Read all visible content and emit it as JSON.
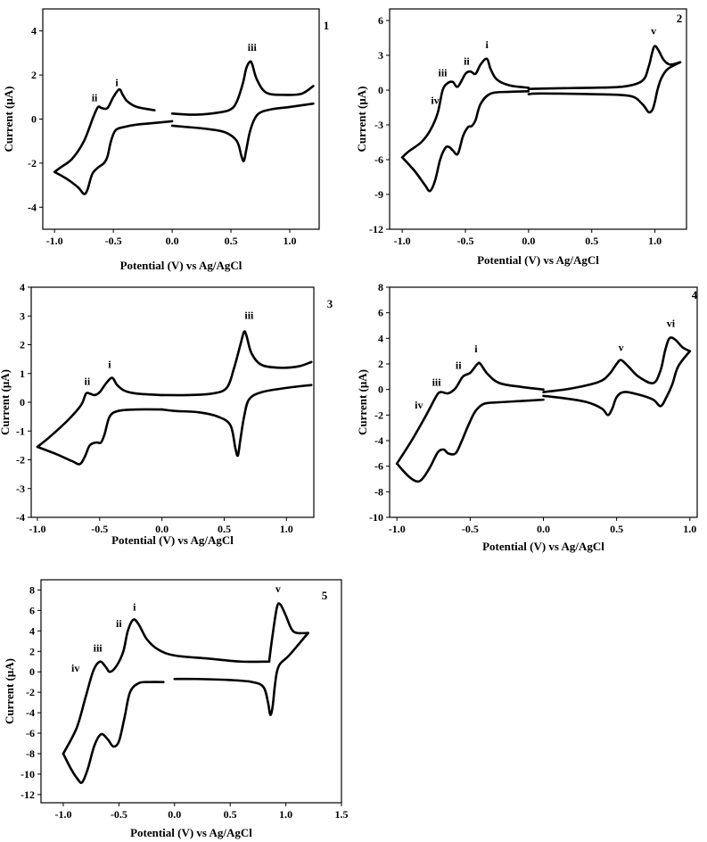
{
  "chart_data": [
    {
      "type": "line",
      "panel_label": "1",
      "xlabel": "Potential (V) vs Ag/AgCl",
      "ylabel": "Current (μA)",
      "xlim": [
        -1.1,
        1.25
      ],
      "ylim": [
        -5,
        5
      ],
      "xticks": [
        -1.0,
        -0.5,
        0.0,
        0.5,
        1.0
      ],
      "xtick_labels": [
        "-1.0",
        "-0.5",
        "0.0",
        "0.5",
        "1.0"
      ],
      "yticks": [
        -4,
        -2,
        0,
        2,
        4
      ],
      "ytick_labels": [
        "-4",
        "-2",
        "0",
        "2",
        "4"
      ],
      "grid": false,
      "series": [
        {
          "x": [
            -0.15,
            -0.3,
            -0.38,
            -0.42,
            -0.45,
            -0.5,
            -0.55,
            -0.6,
            -0.63,
            -0.67,
            -0.75,
            -0.85,
            -0.95,
            -1.0
          ],
          "y": [
            0.4,
            0.55,
            0.8,
            1.1,
            1.35,
            1.0,
            0.5,
            0.5,
            0.55,
            0.1,
            -1.0,
            -1.8,
            -2.2,
            -2.4
          ]
        },
        {
          "x": [
            -1.0,
            -0.9,
            -0.8,
            -0.75,
            -0.72,
            -0.68,
            -0.63,
            -0.58,
            -0.55,
            -0.52,
            -0.48,
            -0.4,
            -0.3,
            -0.2,
            0.0
          ],
          "y": [
            -2.4,
            -2.7,
            -3.1,
            -3.4,
            -3.2,
            -2.5,
            -2.2,
            -2.0,
            -1.7,
            -1.0,
            -0.5,
            -0.35,
            -0.25,
            -0.2,
            -0.1
          ]
        },
        {
          "x": [
            0.0,
            0.2,
            0.4,
            0.5,
            0.55,
            0.6,
            0.63,
            0.66,
            0.68,
            0.72,
            0.8,
            0.95,
            1.1,
            1.2
          ],
          "y": [
            0.25,
            0.2,
            0.3,
            0.45,
            0.8,
            1.6,
            2.3,
            2.6,
            2.5,
            1.8,
            1.2,
            1.1,
            1.15,
            1.5
          ]
        },
        {
          "x": [
            1.2,
            1.0,
            0.85,
            0.75,
            0.7,
            0.66,
            0.63,
            0.61,
            0.59,
            0.55,
            0.45,
            0.3,
            0.1,
            0.0
          ],
          "y": [
            0.7,
            0.55,
            0.45,
            0.3,
            0.0,
            -0.6,
            -1.4,
            -1.9,
            -1.7,
            -1.0,
            -0.6,
            -0.45,
            -0.35,
            -0.3
          ]
        }
      ],
      "annotations": [
        {
          "text": "i",
          "x": -0.47,
          "y": 1.5
        },
        {
          "text": "ii",
          "x": -0.66,
          "y": 0.8
        },
        {
          "text": "iii",
          "x": 0.68,
          "y": 3.1
        }
      ]
    },
    {
      "type": "line",
      "panel_label": "2",
      "xlabel": "Potential (V) vs Ag/AgCl",
      "ylabel": "Current (μA)",
      "xlim": [
        -1.1,
        1.25
      ],
      "ylim": [
        -12,
        7
      ],
      "xticks": [
        -1.0,
        -0.5,
        0.0,
        0.5,
        1.0
      ],
      "xtick_labels": [
        "-1.0",
        "-0.5",
        "0.0",
        "0.5",
        "1.0"
      ],
      "yticks": [
        -12,
        -9,
        -6,
        -3,
        0,
        3,
        6
      ],
      "ytick_labels": [
        "-12",
        "-9",
        "-6",
        "-3",
        "0",
        "3",
        "6"
      ],
      "grid": false,
      "series": [
        {
          "x": [
            0.0,
            -0.15,
            -0.25,
            -0.3,
            -0.33,
            -0.38,
            -0.42,
            -0.46,
            -0.5,
            -0.56,
            -0.6,
            -0.64,
            -0.68,
            -0.72,
            -0.78,
            -0.85,
            -0.95,
            -1.0
          ],
          "y": [
            0.2,
            0.4,
            0.9,
            1.8,
            2.7,
            2.2,
            1.4,
            1.6,
            1.4,
            0.3,
            0.7,
            0.6,
            0.0,
            -2.0,
            -3.5,
            -4.5,
            -5.3,
            -5.8
          ]
        },
        {
          "x": [
            -1.0,
            -0.9,
            -0.82,
            -0.78,
            -0.74,
            -0.7,
            -0.66,
            -0.63,
            -0.6,
            -0.56,
            -0.52,
            -0.48,
            -0.45,
            -0.42,
            -0.38,
            -0.3,
            -0.15,
            0.0
          ],
          "y": [
            -5.8,
            -7.0,
            -8.2,
            -8.7,
            -7.8,
            -6.0,
            -5.0,
            -4.9,
            -5.2,
            -5.5,
            -4.0,
            -3.2,
            -3.1,
            -2.6,
            -1.2,
            -0.3,
            -0.15,
            -0.1
          ]
        },
        {
          "x": [
            0.0,
            0.2,
            0.5,
            0.75,
            0.9,
            0.95,
            0.98,
            1.0,
            1.03,
            1.07,
            1.12,
            1.2
          ],
          "y": [
            0.1,
            0.15,
            0.2,
            0.3,
            0.8,
            2.0,
            3.3,
            3.8,
            3.4,
            2.6,
            2.2,
            2.4
          ]
        },
        {
          "x": [
            1.2,
            1.1,
            1.05,
            1.02,
            1.0,
            0.98,
            0.95,
            0.9,
            0.8,
            0.5,
            0.2,
            0.05,
            0.0
          ],
          "y": [
            2.4,
            1.8,
            1.0,
            0.0,
            -1.0,
            -1.7,
            -1.9,
            -1.2,
            -0.5,
            -0.35,
            -0.3,
            -0.3,
            -0.35
          ]
        }
      ],
      "annotations": [
        {
          "text": "i",
          "x": -0.33,
          "y": 3.6
        },
        {
          "text": "ii",
          "x": -0.49,
          "y": 2.2
        },
        {
          "text": "iii",
          "x": -0.68,
          "y": 1.2
        },
        {
          "text": "iv",
          "x": -0.74,
          "y": -1.2
        },
        {
          "text": "v",
          "x": 0.99,
          "y": 4.8
        }
      ]
    },
    {
      "type": "line",
      "panel_label": "3",
      "xlabel": "Potential (V) vs Ag/AgCl",
      "ylabel": "Current (μA)",
      "xlim": [
        -1.05,
        1.22
      ],
      "ylim": [
        -4,
        4
      ],
      "xticks": [
        -1.0,
        -0.5,
        0.0,
        0.5,
        1.0
      ],
      "xtick_labels": [
        "-1.0",
        "-0.5",
        "0.0",
        "0.5",
        "1.0"
      ],
      "yticks": [
        -4,
        -3,
        -2,
        -1,
        0,
        1,
        2,
        3,
        4
      ],
      "ytick_labels": [
        "-4",
        "-3",
        "-2",
        "-1",
        "0",
        "1",
        "2",
        "3",
        "4"
      ],
      "grid": false,
      "series": [
        {
          "x": [
            0.0,
            -0.2,
            -0.3,
            -0.36,
            -0.4,
            -0.45,
            -0.5,
            -0.54,
            -0.58,
            -0.61,
            -0.65,
            -0.75,
            -0.9,
            -1.0
          ],
          "y": [
            0.25,
            0.3,
            0.4,
            0.6,
            0.85,
            0.65,
            0.35,
            0.25,
            0.3,
            0.3,
            -0.1,
            -0.6,
            -1.2,
            -1.55
          ]
        },
        {
          "x": [
            -1.0,
            -0.85,
            -0.72,
            -0.66,
            -0.62,
            -0.58,
            -0.53,
            -0.49,
            -0.46,
            -0.42,
            -0.35,
            -0.2,
            0.0
          ],
          "y": [
            -1.55,
            -1.8,
            -2.05,
            -2.15,
            -1.9,
            -1.5,
            -1.4,
            -1.4,
            -1.1,
            -0.5,
            -0.3,
            -0.25,
            -0.25
          ]
        },
        {
          "x": [
            0.0,
            0.2,
            0.4,
            0.52,
            0.58,
            0.63,
            0.66,
            0.68,
            0.72,
            0.8,
            0.95,
            1.1,
            1.2
          ],
          "y": [
            0.25,
            0.25,
            0.3,
            0.5,
            1.2,
            2.0,
            2.45,
            2.3,
            1.7,
            1.3,
            1.2,
            1.25,
            1.4
          ]
        },
        {
          "x": [
            1.2,
            1.0,
            0.8,
            0.7,
            0.66,
            0.63,
            0.61,
            0.59,
            0.55,
            0.45,
            0.3,
            0.1,
            0.0
          ],
          "y": [
            0.6,
            0.5,
            0.35,
            0.1,
            -0.5,
            -1.3,
            -1.85,
            -1.6,
            -0.8,
            -0.5,
            -0.35,
            -0.3,
            -0.25
          ]
        }
      ],
      "annotations": [
        {
          "text": "i",
          "x": -0.42,
          "y": 1.2
        },
        {
          "text": "ii",
          "x": -0.6,
          "y": 0.6
        },
        {
          "text": "iii",
          "x": 0.7,
          "y": 2.9
        }
      ]
    },
    {
      "type": "line",
      "panel_label": "4",
      "xlabel": "Potential (V) vs Ag/AgCl",
      "ylabel": "Current  (μA)",
      "xlim": [
        -1.05,
        1.05
      ],
      "ylim": [
        -10,
        8
      ],
      "xticks": [
        -1.0,
        -0.5,
        0.0,
        0.5,
        1.0
      ],
      "xtick_labels": [
        "-1.0",
        "-0.5",
        "0.0",
        "0.5",
        "1.0"
      ],
      "yticks": [
        -10,
        -8,
        -6,
        -4,
        -2,
        0,
        2,
        4,
        6,
        8
      ],
      "ytick_labels": [
        "-10",
        "-8",
        "-6",
        "-4",
        "-2",
        "0",
        "2",
        "4",
        "6",
        "8"
      ],
      "grid": false,
      "series": [
        {
          "x": [
            0.0,
            -0.15,
            -0.3,
            -0.38,
            -0.43,
            -0.45,
            -0.5,
            -0.55,
            -0.6,
            -0.65,
            -0.7,
            -0.73,
            -0.8,
            -0.9,
            -1.0
          ],
          "y": [
            0.0,
            0.2,
            0.5,
            1.2,
            2.0,
            2.0,
            1.3,
            1.0,
            0.1,
            -0.3,
            -0.2,
            -0.5,
            -2.0,
            -4.0,
            -5.8
          ]
        },
        {
          "x": [
            -1.0,
            -0.92,
            -0.86,
            -0.82,
            -0.77,
            -0.72,
            -0.68,
            -0.65,
            -0.6,
            -0.56,
            -0.52,
            -0.48,
            -0.45,
            -0.4,
            -0.3,
            -0.15,
            0.0
          ],
          "y": [
            -5.8,
            -6.8,
            -7.2,
            -6.9,
            -6.0,
            -4.9,
            -4.7,
            -5.0,
            -5.0,
            -4.1,
            -3.0,
            -2.0,
            -1.5,
            -1.1,
            -1.0,
            -0.9,
            -0.8
          ]
        },
        {
          "x": [
            0.0,
            0.2,
            0.38,
            0.45,
            0.5,
            0.53,
            0.58,
            0.65,
            0.75,
            0.8,
            0.83,
            0.86,
            0.9,
            0.95,
            1.0
          ],
          "y": [
            -0.2,
            0.1,
            0.6,
            1.2,
            2.0,
            2.3,
            1.8,
            1.0,
            0.5,
            1.5,
            3.0,
            4.0,
            3.9,
            3.3,
            3.0
          ]
        },
        {
          "x": [
            1.0,
            0.92,
            0.88,
            0.84,
            0.8,
            0.75,
            0.65,
            0.55,
            0.5,
            0.47,
            0.44,
            0.4,
            0.3,
            0.15,
            0.0
          ],
          "y": [
            3.0,
            1.8,
            0.4,
            -0.6,
            -1.3,
            -0.8,
            -0.4,
            -0.2,
            -0.6,
            -1.5,
            -2.0,
            -1.5,
            -1.0,
            -0.7,
            -0.5
          ]
        }
      ],
      "annotations": [
        {
          "text": "i",
          "x": -0.46,
          "y": 2.9
        },
        {
          "text": "ii",
          "x": -0.58,
          "y": 1.6
        },
        {
          "text": "iii",
          "x": -0.73,
          "y": 0.3
        },
        {
          "text": "iv",
          "x": -0.85,
          "y": -1.5
        },
        {
          "text": "v",
          "x": 0.53,
          "y": 3.0
        },
        {
          "text": "vi",
          "x": 0.87,
          "y": 4.9
        }
      ]
    },
    {
      "type": "line",
      "panel_label": "5",
      "xlabel": "Potential (V) vs Ag/AgCl",
      "ylabel": "Current (μA)",
      "xlim": [
        -1.2,
        1.5
      ],
      "ylim": [
        -12.8,
        9
      ],
      "xticks": [
        -1.0,
        -0.5,
        0.0,
        0.5,
        1.0,
        1.5
      ],
      "xtick_labels": [
        "-1.0",
        "-0.5",
        "0.0",
        "0.5",
        "1.0",
        "1.5"
      ],
      "yticks": [
        -12,
        -10,
        -8,
        -6,
        -4,
        -2,
        0,
        2,
        4,
        6,
        8
      ],
      "ytick_labels": [
        "-12",
        "-10",
        "-8",
        "-6",
        "-4",
        "-2",
        "0",
        "2",
        "4",
        "6",
        "8"
      ],
      "grid": false,
      "series": [
        {
          "x": [
            0.85,
            0.6,
            0.3,
            0.0,
            -0.15,
            -0.25,
            -0.32,
            -0.37,
            -0.42,
            -0.46,
            -0.52,
            -0.58,
            -0.62,
            -0.67,
            -0.73,
            -0.8,
            -0.88,
            -1.0
          ],
          "y": [
            1.0,
            1.0,
            1.3,
            1.6,
            2.2,
            3.2,
            4.6,
            5.1,
            4.0,
            2.0,
            0.6,
            0.0,
            0.5,
            1.0,
            0.1,
            -2.5,
            -5.5,
            -8.0
          ]
        },
        {
          "x": [
            -1.0,
            -0.93,
            -0.87,
            -0.83,
            -0.78,
            -0.72,
            -0.66,
            -0.6,
            -0.55,
            -0.5,
            -0.45,
            -0.4,
            -0.32,
            -0.22,
            -0.1
          ],
          "y": [
            -8.0,
            -9.5,
            -10.5,
            -10.8,
            -9.5,
            -7.2,
            -6.1,
            -6.6,
            -7.3,
            -6.8,
            -4.5,
            -2.0,
            -1.1,
            -1.0,
            -1.0
          ]
        },
        {
          "x": [
            0.85,
            0.88,
            0.92,
            0.95,
            1.0,
            1.05,
            1.1,
            1.2
          ],
          "y": [
            1.0,
            3.5,
            6.3,
            6.6,
            5.5,
            4.2,
            3.8,
            3.8
          ]
        },
        {
          "x": [
            1.2,
            1.1,
            1.02,
            0.95,
            0.92,
            0.9,
            0.88,
            0.86,
            0.84,
            0.8,
            0.7,
            0.5,
            0.2,
            0.0
          ],
          "y": [
            3.8,
            2.5,
            1.5,
            0.8,
            0.0,
            -1.5,
            -3.5,
            -4.2,
            -3.0,
            -1.5,
            -1.0,
            -0.8,
            -0.7,
            -0.7
          ]
        }
      ],
      "annotations": [
        {
          "text": "i",
          "x": -0.36,
          "y": 6.0
        },
        {
          "text": "ii",
          "x": -0.5,
          "y": 4.4
        },
        {
          "text": "iii",
          "x": -0.69,
          "y": 2.0
        },
        {
          "text": "iv",
          "x": -0.89,
          "y": 0.0
        },
        {
          "text": "v",
          "x": 0.93,
          "y": 7.8
        }
      ]
    }
  ]
}
